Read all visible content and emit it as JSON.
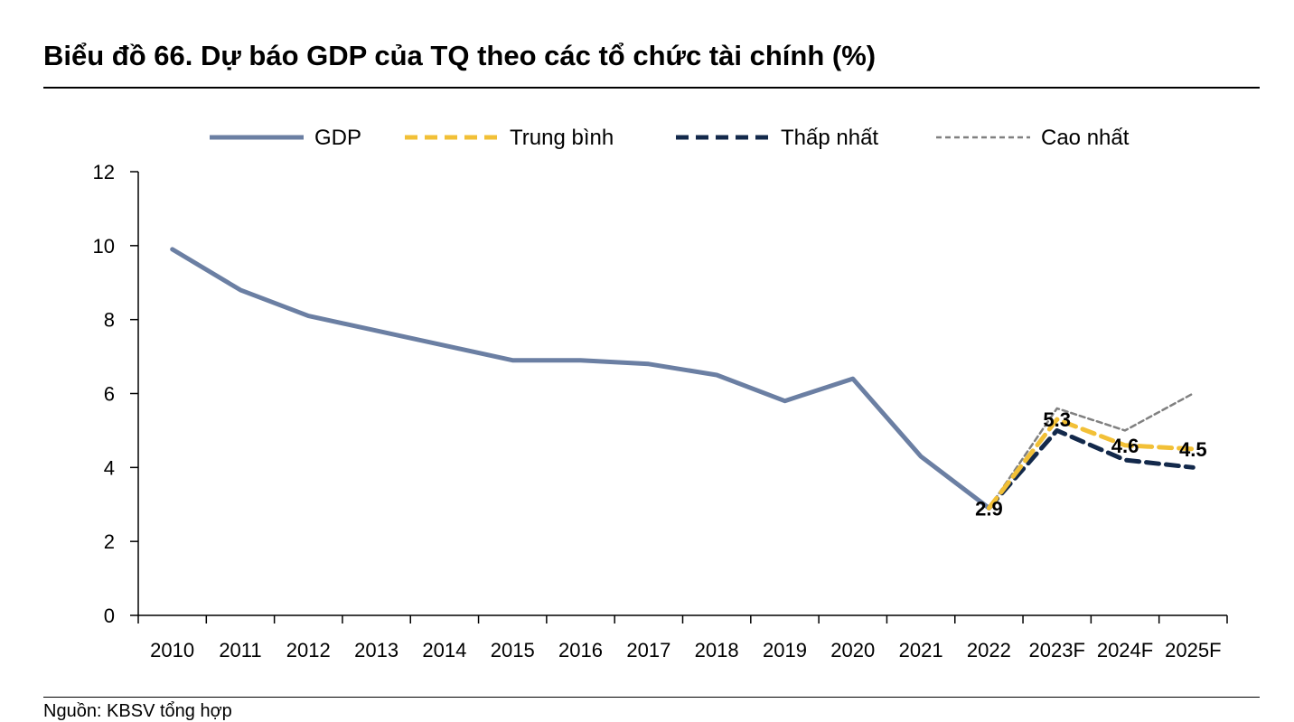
{
  "page": {
    "title": "Biểu đồ 66. Dự báo GDP của TQ theo các tổ chức tài chính (%)",
    "source": "Nguồn: KBSV tổng hợp"
  },
  "chart_data": {
    "type": "line",
    "title": "Biểu đồ 66. Dự báo GDP của TQ theo các tổ chức tài chính (%)",
    "xlabel": "",
    "ylabel": "",
    "ylim": [
      0,
      12
    ],
    "yticks": [
      0,
      2,
      4,
      6,
      8,
      10,
      12
    ],
    "categories": [
      "2010",
      "2011",
      "2012",
      "2013",
      "2014",
      "2015",
      "2016",
      "2017",
      "2018",
      "2019",
      "2020",
      "2021",
      "2022",
      "2023F",
      "2024F",
      "2025F"
    ],
    "legend_position": "top",
    "series": [
      {
        "name": "GDP",
        "color": "#6b7fa3",
        "style": "solid",
        "values": [
          9.9,
          8.8,
          8.1,
          7.7,
          7.3,
          6.9,
          6.9,
          6.8,
          6.5,
          5.8,
          6.4,
          4.3,
          2.9,
          null,
          null,
          null
        ]
      },
      {
        "name": "Trung bình",
        "color": "#f2c037",
        "style": "dashed",
        "values": [
          null,
          null,
          null,
          null,
          null,
          null,
          null,
          null,
          null,
          null,
          null,
          null,
          2.9,
          5.3,
          4.6,
          4.5
        ]
      },
      {
        "name": "Thấp nhất",
        "color": "#13294b",
        "style": "dashed",
        "values": [
          null,
          null,
          null,
          null,
          null,
          null,
          null,
          null,
          null,
          null,
          null,
          null,
          2.9,
          5.0,
          4.2,
          4.0
        ]
      },
      {
        "name": "Cao nhất",
        "color": "#808080",
        "style": "dotted",
        "values": [
          null,
          null,
          null,
          null,
          null,
          null,
          null,
          null,
          null,
          null,
          null,
          null,
          2.9,
          5.6,
          5.0,
          6.0
        ]
      }
    ],
    "data_labels": [
      {
        "category": "2022",
        "value": 2.9,
        "text": "2.9"
      },
      {
        "category": "2023F",
        "value": 5.3,
        "text": "5.3"
      },
      {
        "category": "2024F",
        "value": 4.6,
        "text": "4.6"
      },
      {
        "category": "2025F",
        "value": 4.5,
        "text": "4.5"
      }
    ]
  }
}
